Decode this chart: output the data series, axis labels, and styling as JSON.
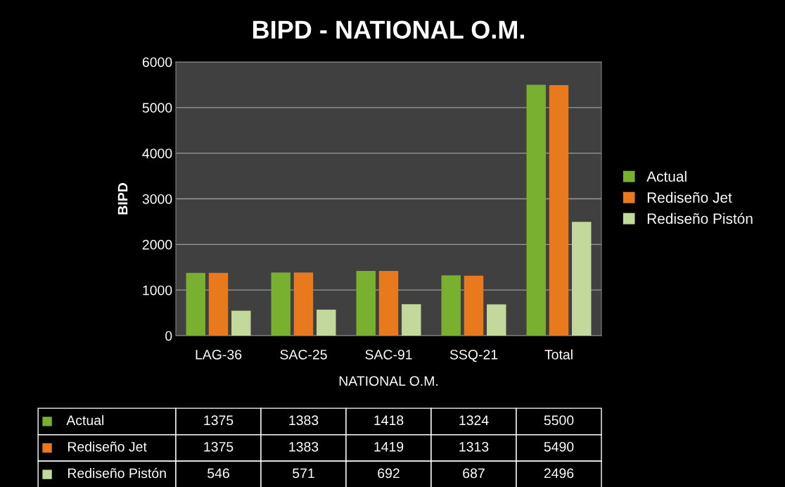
{
  "chart_data": {
    "type": "bar",
    "title": "BIPD - NATIONAL O.M.",
    "xlabel": "NATIONAL O.M.",
    "ylabel": "BIPD",
    "categories": [
      "LAG-36",
      "SAC-25",
      "SAC-91",
      "SSQ-21",
      "Total"
    ],
    "series": [
      {
        "name": "Actual",
        "color": "#7ab030",
        "values": [
          1375,
          1383,
          1418,
          1324,
          5500
        ]
      },
      {
        "name": "Rediseño Jet",
        "color": "#e8791c",
        "values": [
          1375,
          1383,
          1419,
          1313,
          5490
        ]
      },
      {
        "name": "Rediseño Pistón",
        "color": "#c3d99c",
        "values": [
          546,
          571,
          692,
          687,
          2496
        ]
      }
    ],
    "ylim": [
      0,
      6000
    ],
    "yticks": [
      0,
      1000,
      2000,
      3000,
      4000,
      5000,
      6000
    ],
    "grid": "y",
    "legend": "right",
    "data_labels": true
  }
}
